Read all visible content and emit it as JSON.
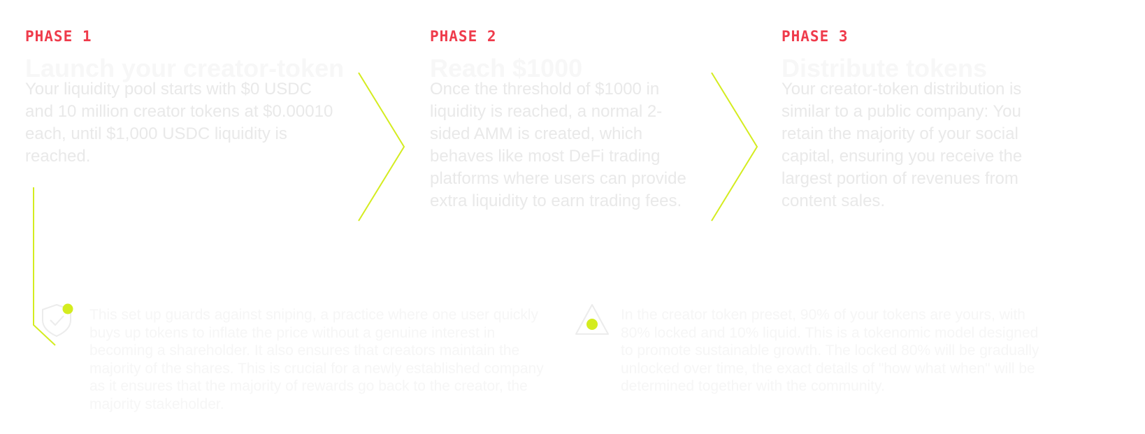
{
  "phases": [
    {
      "label": "PHASE 1",
      "title": "Launch your creator-token",
      "body": "Your liquidity pool starts with $0 USDC and 10 million creator tokens at $0.00010 each, until $1,000 USDC liquidity is reached."
    },
    {
      "label": "PHASE 2",
      "title": "Reach $1000",
      "body": "Once the threshold of $1000 in liquidity is reached, a normal 2-sided AMM is created, which behaves like most DeFi trading platforms where users can provide extra liquidity to earn trading fees."
    },
    {
      "label": "PHASE 3",
      "title": "Distribute tokens",
      "body": "Your creator-token distribution is similar to a public company: You retain the majority of your social capital, ensuring you receive the largest portion of revenues from content sales."
    }
  ],
  "notes": [
    {
      "icon": "shield-check-icon",
      "text": "This set up guards against sniping, a practice where one user quickly buys up tokens to inflate the price without a genuine interest in becoming a shareholder. It also ensures that creators maintain the majority of the shares. This is crucial for a newly established company as it ensures that the majority of rewards go back to the creator, the majority stakeholder."
    },
    {
      "icon": "triangle-icon",
      "text": "In the creator token preset, 90% of your tokens are yours, with 80% locked and 10% liquid. This is a tokenomic model designed to promote sustainable growth. The locked 80% will be gradually unlocked over time, the exact details of \"how what when\" will be determined together with the community."
    }
  ],
  "colors": {
    "accent_red": "#ef3b4b",
    "accent_lime": "#d4ec1f",
    "faded_text": "#e9e9e9"
  }
}
